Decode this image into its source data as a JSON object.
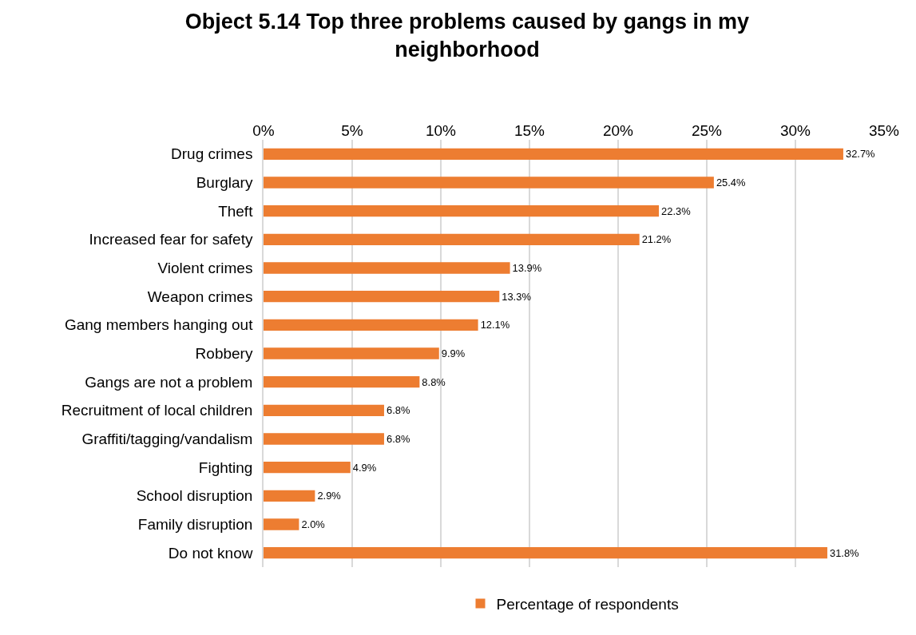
{
  "chart_data": {
    "type": "bar",
    "orientation": "horizontal",
    "title": "Object 5.14 Top three problems caused by gangs in my neighborhood",
    "categories": [
      "Drug crimes",
      "Burglary",
      "Theft",
      "Increased fear for safety",
      "Violent crimes",
      "Weapon crimes",
      "Gang members hanging out",
      "Robbery",
      "Gangs are not a problem",
      "Recruitment of local children",
      "Graffiti/tagging/vandalism",
      "Fighting",
      "School disruption",
      "Family disruption",
      "Do not know"
    ],
    "series": [
      {
        "name": "Percentage of respondents",
        "color": "#ed7d31",
        "values": [
          32.7,
          25.4,
          22.3,
          21.2,
          13.9,
          13.3,
          12.1,
          9.9,
          8.8,
          6.8,
          6.8,
          4.9,
          2.9,
          2.0,
          31.8
        ],
        "value_labels": [
          "32.7%",
          "25.4%",
          "22.3%",
          "21.2%",
          "13.9%",
          "13.3%",
          "12.1%",
          "9.9%",
          "8.8%",
          "6.8%",
          "6.8%",
          "4.9%",
          "2.9%",
          "2.0%",
          "31.8%"
        ]
      }
    ],
    "xlim": [
      0,
      35
    ],
    "xticks": [
      {
        "value": 0,
        "label": "0%"
      },
      {
        "value": 5,
        "label": "5%"
      },
      {
        "value": 10,
        "label": "10%"
      },
      {
        "value": 15,
        "label": "15%"
      },
      {
        "value": 20,
        "label": "20%"
      },
      {
        "value": 25,
        "label": "25%"
      },
      {
        "value": 30,
        "label": "30%"
      },
      {
        "value": 35,
        "label": "35%"
      }
    ],
    "grid": "x",
    "legend": "bottom"
  }
}
